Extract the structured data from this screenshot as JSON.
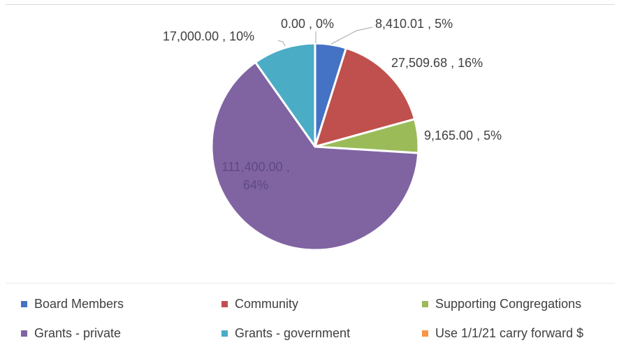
{
  "chart_data": {
    "type": "pie",
    "title": "",
    "start_angle_deg": 0,
    "direction": "clockwise",
    "slice_separator": "#ffffff",
    "slices": [
      {
        "name": "Board Members",
        "value": 8410.01,
        "label": "8,410.01 , 5%",
        "color": "#4472c4"
      },
      {
        "name": "Community",
        "value": 27509.68,
        "label": "27,509.68 , 16%",
        "color": "#c0504d"
      },
      {
        "name": "Supporting Congregations",
        "value": 9165.0,
        "label": "9,165.00 , 5%",
        "color": "#9bbb59"
      },
      {
        "name": "Grants - private",
        "value": 111400.0,
        "label": "111,400.00 , 64%",
        "color": "#8064a2"
      },
      {
        "name": "Grants - government",
        "value": 17000.0,
        "label": "17,000.00 , 10%",
        "color": "#4bacc6"
      },
      {
        "name": "Use 1/1/21 carry forward $",
        "value": 0.0,
        "label": "0.00 , 0%",
        "color": "#f79646"
      }
    ],
    "legend": {
      "position": "bottom",
      "columns": 3
    }
  }
}
